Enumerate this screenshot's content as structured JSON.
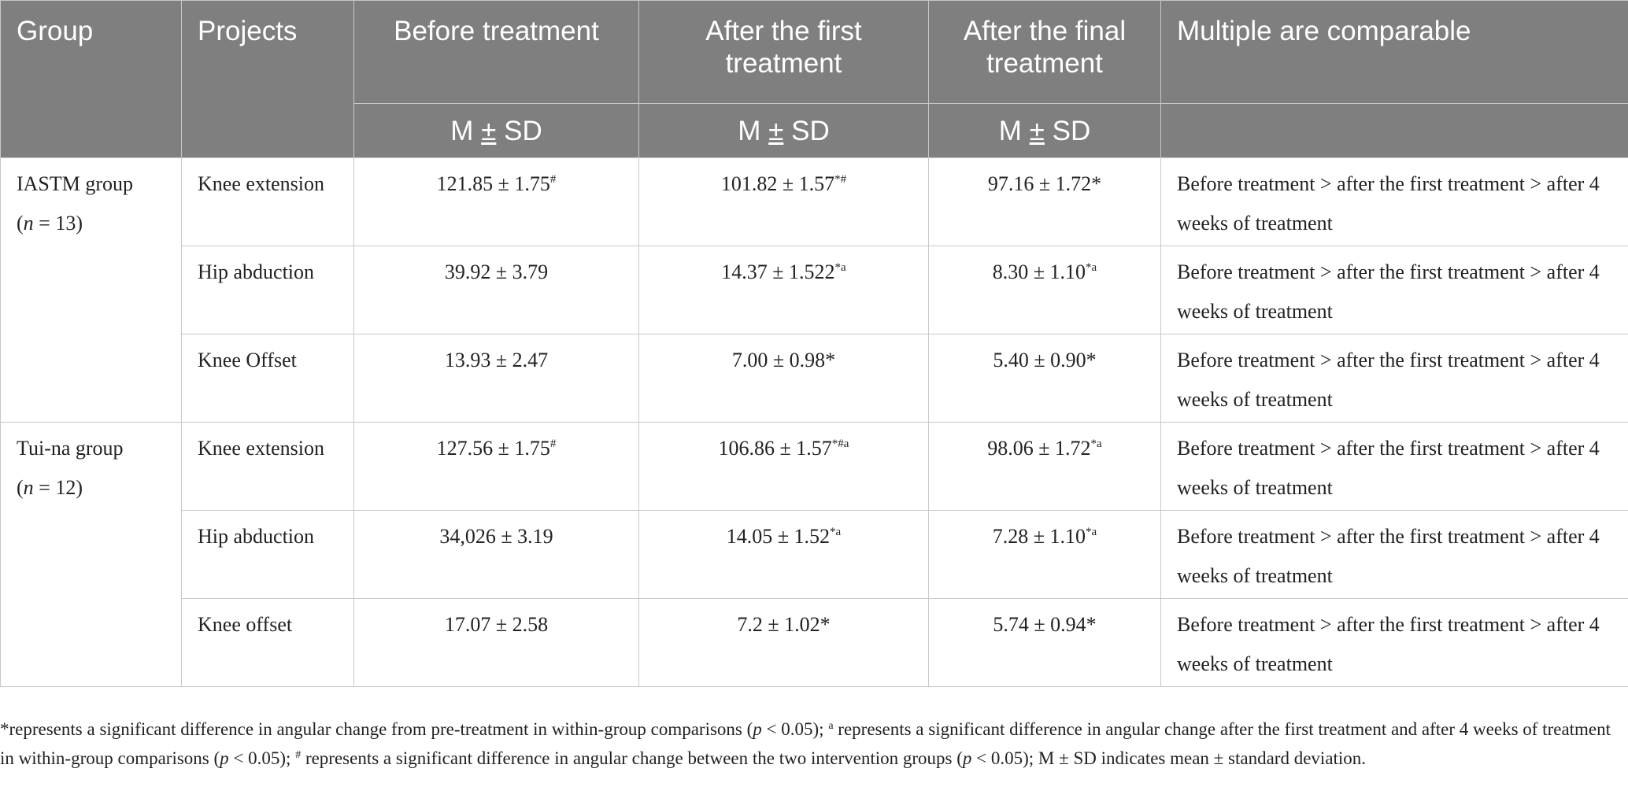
{
  "header": {
    "group": "Group",
    "projects": "Projects",
    "before": "Before treatment",
    "after_first": "After the first treatment",
    "after_final": "After the final treatment",
    "comparable": "Multiple are comparable",
    "msd_m": "M",
    "msd_pm": "±",
    "msd_sd": "SD"
  },
  "groups": [
    {
      "name": "IASTM group",
      "n_prefix": "(",
      "n_var": "n",
      "n_value": " = 13)",
      "rows": [
        {
          "project": "Knee extension",
          "before": "121.85 ± 1.75",
          "before_sup": "#",
          "after_first": "101.82 ± 1.57",
          "after_first_sup": "*#",
          "after_final": "97.16 ± 1.72*",
          "after_final_sup": "",
          "comparable": "Before treatment > after the first treatment > after 4 weeks of treatment"
        },
        {
          "project": "Hip abduction",
          "before": "39.92 ± 3.79",
          "before_sup": "",
          "after_first": "14.37 ± 1.522",
          "after_first_sup": "*a",
          "after_final": "8.30 ± 1.10",
          "after_final_sup": "*a",
          "comparable": "Before treatment > after the first treatment > after 4 weeks of treatment"
        },
        {
          "project": "Knee Offset",
          "before": "13.93 ± 2.47",
          "before_sup": "",
          "after_first": "7.00 ± 0.98*",
          "after_first_sup": "",
          "after_final": "5.40 ± 0.90*",
          "after_final_sup": "",
          "comparable": "Before treatment > after the first treatment > after 4 weeks of treatment"
        }
      ]
    },
    {
      "name": "Tui-na group",
      "n_prefix": "(",
      "n_var": "n",
      "n_value": " = 12)",
      "rows": [
        {
          "project": "Knee extension",
          "before": "127.56 ± 1.75",
          "before_sup": "#",
          "after_first": "106.86 ± 1.57",
          "after_first_sup": "*#a",
          "after_final": "98.06 ± 1.72",
          "after_final_sup": "*a",
          "comparable": "Before treatment > after the first treatment > after 4 weeks of treatment"
        },
        {
          "project": "Hip abduction",
          "before": "34,026 ± 3.19",
          "before_sup": "",
          "after_first": "14.05 ± 1.52",
          "after_first_sup": "*a",
          "after_final": "7.28 ± 1.10",
          "after_final_sup": "*a",
          "comparable": "Before treatment > after the first treatment > after 4 weeks of treatment"
        },
        {
          "project": "Knee offset",
          "before": "17.07 ± 2.58",
          "before_sup": "",
          "after_first": "7.2 ± 1.02*",
          "after_first_sup": "",
          "after_final": "5.74 ± 0.94*",
          "after_final_sup": "",
          "comparable": "Before treatment > after the first treatment > after 4 weeks of treatment"
        }
      ]
    }
  ],
  "footnote": {
    "p1": "*represents a significant difference in angular change from pre-treatment in within-group comparisons (",
    "p": "p",
    "p2": " < 0.05); ",
    "sup_a": "a",
    "p3": " represents a significant difference in angular change after the first treatment and after 4 weeks of treatment in within-group comparisons (",
    "p4": " < 0.05); ",
    "sup_hash": "#",
    "p5": " represents a significant difference in angular change between the two intervention groups (",
    "p6": " < 0.05); M ± SD indicates mean ± standard deviation."
  }
}
